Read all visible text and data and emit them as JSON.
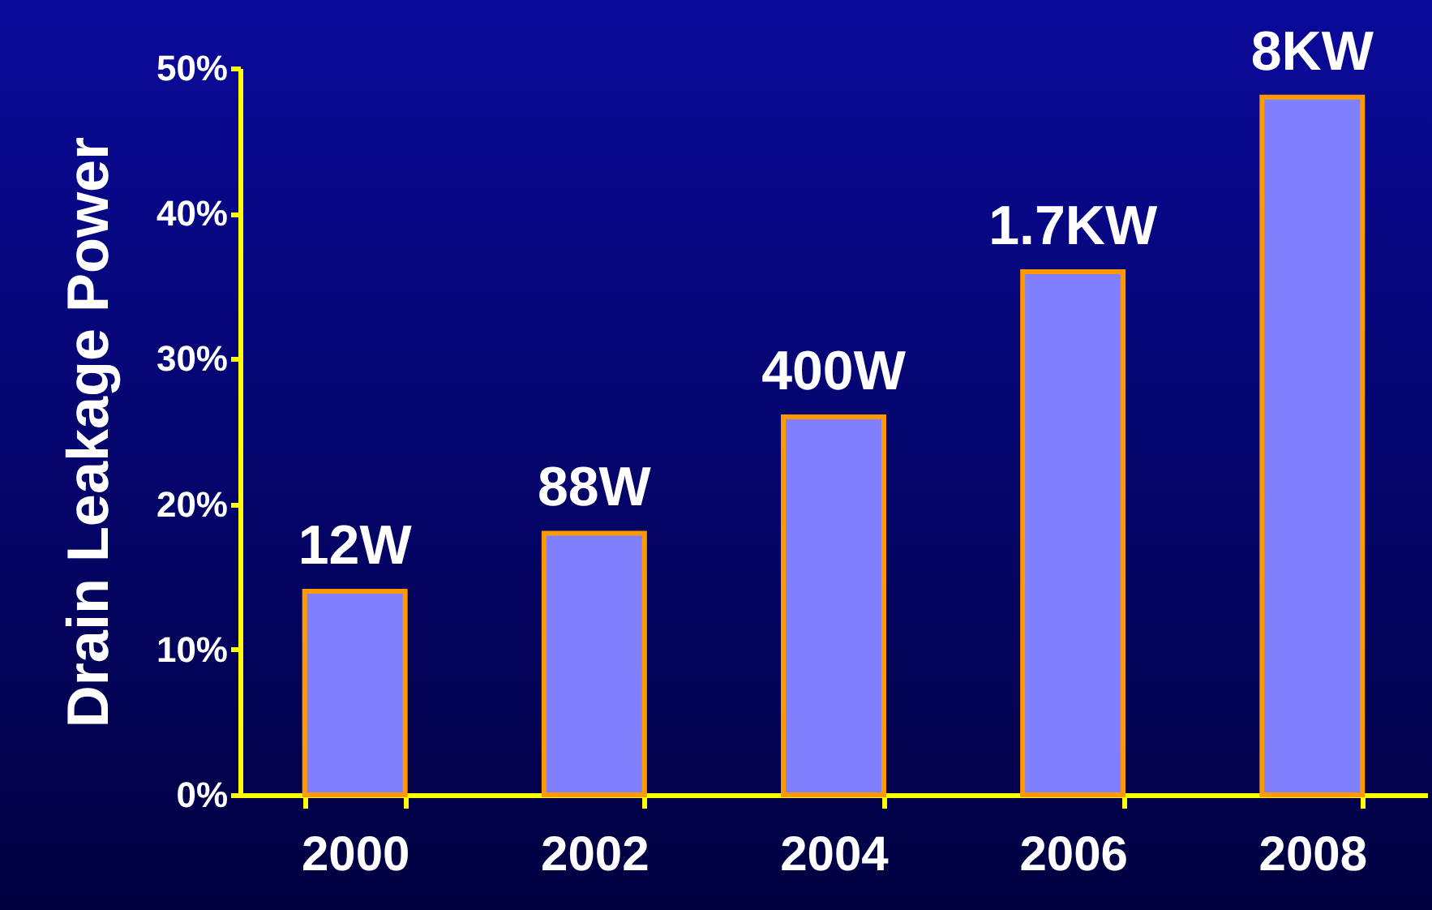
{
  "chart_data": {
    "type": "bar",
    "ylabel": "Drain Leakage Power",
    "categories": [
      "2000",
      "2002",
      "2004",
      "2006",
      "2008"
    ],
    "values": [
      14,
      18,
      26,
      36,
      48
    ],
    "color": "#8080ff",
    "annotations": [
      {
        "text": "12W",
        "x": "2000",
        "y": 14
      },
      {
        "text": "88W",
        "x": "2002",
        "y": 18
      },
      {
        "text": "400W",
        "x": "2004",
        "y": 26
      },
      {
        "text": "1.7KW",
        "x": "2006",
        "y": 36
      },
      {
        "text": "8KW",
        "x": "2008",
        "y": 48
      }
    ],
    "ylim": [
      0,
      50
    ],
    "yticks": [
      {
        "value": 0,
        "label": "0%"
      },
      {
        "value": 10,
        "label": "10%"
      },
      {
        "value": 20,
        "label": "20%"
      },
      {
        "value": 30,
        "label": "30%"
      },
      {
        "value": 40,
        "label": "40%"
      },
      {
        "value": 50,
        "label": "50%"
      }
    ],
    "grid": false
  }
}
